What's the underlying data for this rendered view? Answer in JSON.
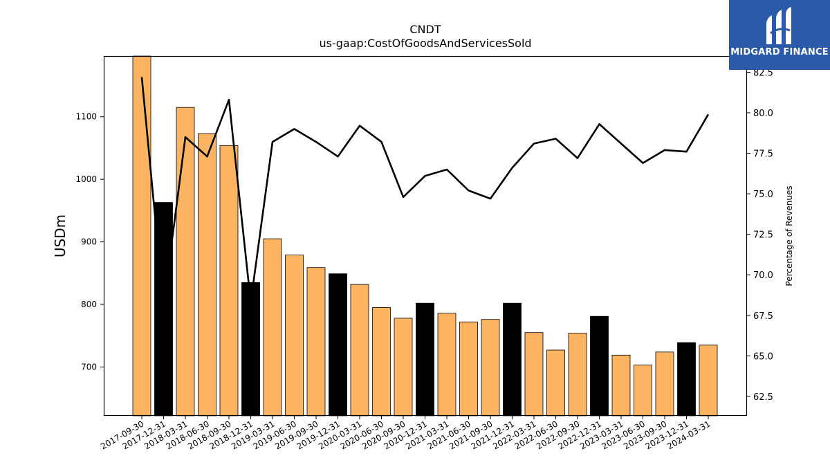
{
  "chart_data": {
    "type": "bar",
    "title": "CNDT",
    "subtitle": "us-gaap:CostOfGoodsAndServicesSold",
    "ylabel": "USDm",
    "y2label": "Percentage of Revenues",
    "ylim": [
      622,
      1197
    ],
    "y2lim": [
      61.3,
      83.5
    ],
    "yticks": [
      700,
      800,
      900,
      1000,
      1100
    ],
    "y2ticks": [
      62.5,
      65.0,
      67.5,
      70.0,
      72.5,
      75.0,
      77.5,
      80.0,
      82.5
    ],
    "categories": [
      "2017-09-30",
      "2017-12-31",
      "2018-03-31",
      "2018-06-30",
      "2018-09-30",
      "2018-12-31",
      "2019-03-31",
      "2019-06-30",
      "2019-09-30",
      "2019-12-31",
      "2020-03-31",
      "2020-06-30",
      "2020-09-30",
      "2020-12-31",
      "2021-03-31",
      "2021-06-30",
      "2021-09-30",
      "2021-12-31",
      "2022-03-31",
      "2022-06-30",
      "2022-09-30",
      "2022-12-31",
      "2023-03-31",
      "2023-06-30",
      "2023-09-30",
      "2023-12-31",
      "2024-03-31"
    ],
    "series": [
      {
        "values": [
          1197,
          963,
          1115,
          1073,
          1054,
          835,
          905,
          879,
          859,
          849,
          832,
          795,
          778,
          802,
          786,
          772,
          776,
          802,
          755,
          727,
          754,
          781,
          719,
          703,
          724,
          739,
          735
        ]
      },
      {
        "values": [
          82.2,
          68.1,
          78.5,
          77.3,
          80.8,
          68.3,
          78.2,
          79.0,
          78.2,
          77.3,
          79.2,
          78.2,
          74.8,
          76.1,
          76.5,
          75.2,
          74.7,
          76.6,
          78.1,
          78.4,
          77.2,
          79.3,
          78.1,
          76.9,
          77.7,
          77.6,
          79.9
        ]
      }
    ],
    "colors": {
      "quarter": "#fdb462",
      "year_end": "#000000",
      "line": "#000000"
    }
  },
  "logo": {
    "text": "MIDGARD FINANCE",
    "bg": "#2a5aa8"
  }
}
